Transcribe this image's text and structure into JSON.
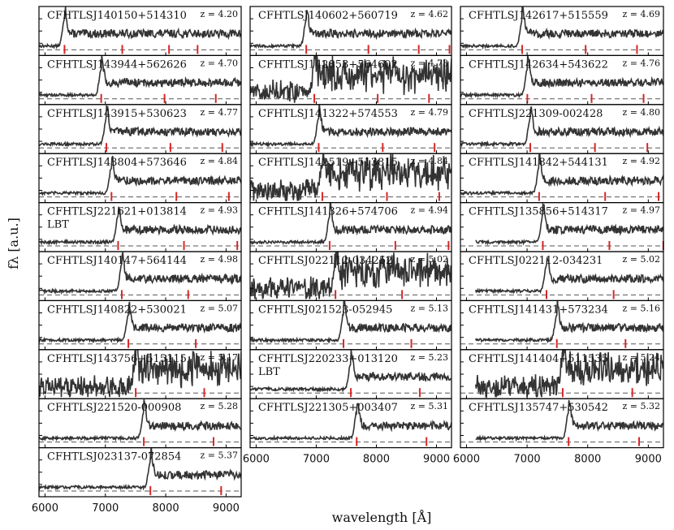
{
  "chart_data": {
    "type": "line",
    "title": "",
    "xlabel": "wavelength [Å]",
    "ylabel": "f_λ [a.u.]",
    "xlim": [
      5900,
      9250
    ],
    "xticks": [
      6000,
      7000,
      8000,
      9000
    ],
    "colors": {
      "spectrum": "#333333",
      "line_marker": "#d62728",
      "zero_line": "#555555"
    },
    "marked_lines_rest_A": [
      1216,
      1400,
      1549,
      1640,
      1909,
      2326
    ],
    "panels": [
      {
        "column": 1,
        "name": "CFHTLSJ140150+514310",
        "z": "z = 4.20",
        "z_value": 4.2,
        "note": ""
      },
      {
        "column": 1,
        "name": "CFHTLSJ143944+562626",
        "z": "z = 4.70",
        "z_value": 4.7,
        "note": ""
      },
      {
        "column": 1,
        "name": "CFHTLSJ143915+530623",
        "z": "z = 4.77",
        "z_value": 4.77,
        "note": ""
      },
      {
        "column": 1,
        "name": "CFHTLSJ143804+573646",
        "z": "z = 4.84",
        "z_value": 4.84,
        "note": ""
      },
      {
        "column": 1,
        "name": "CFHTLSJ221621+013814",
        "z": "z = 4.93",
        "z_value": 4.93,
        "note": "LBT"
      },
      {
        "column": 1,
        "name": "CFHTLSJ140147+564144",
        "z": "z = 4.98",
        "z_value": 4.98,
        "note": ""
      },
      {
        "column": 1,
        "name": "CFHTLSJ140822+530021",
        "z": "z = 5.07",
        "z_value": 5.07,
        "note": ""
      },
      {
        "column": 1,
        "name": "CFHTLSJ143756+515115",
        "z": "z = 5.17",
        "z_value": 5.17,
        "note": ""
      },
      {
        "column": 1,
        "name": "CFHTLSJ221520-000908",
        "z": "z = 5.28",
        "z_value": 5.28,
        "note": ""
      },
      {
        "column": 1,
        "name": "CFHTLSJ023137-072854",
        "z": "z = 5.37",
        "z_value": 5.37,
        "note": ""
      },
      {
        "column": 2,
        "name": "CFHTLSJ140602+560719",
        "z": "z = 4.62",
        "z_value": 4.62,
        "note": ""
      },
      {
        "column": 2,
        "name": "CFHTLSJ142853+564602",
        "z": "z = 4.73",
        "z_value": 4.73,
        "note": ""
      },
      {
        "column": 2,
        "name": "CFHTLSJ141322+574553",
        "z": "z = 4.79",
        "z_value": 4.79,
        "note": ""
      },
      {
        "column": 2,
        "name": "CFHTLSJ142519+513815",
        "z": "z = 4.84",
        "z_value": 4.84,
        "note": ""
      },
      {
        "column": 2,
        "name": "CFHTLSJ141326+574706",
        "z": "z = 4.94",
        "z_value": 4.94,
        "note": ""
      },
      {
        "column": 2,
        "name": "CFHTLSJ022112-034252",
        "z": "z = 5.02",
        "z_value": 5.02,
        "note": ""
      },
      {
        "column": 2,
        "name": "CFHTLSJ021523-052945",
        "z": "z = 5.13",
        "z_value": 5.13,
        "note": ""
      },
      {
        "column": 2,
        "name": "CFHTLSJ220233+013120",
        "z": "z = 5.23",
        "z_value": 5.23,
        "note": "LBT"
      },
      {
        "column": 2,
        "name": "CFHTLSJ221305+003407",
        "z": "z = 5.31",
        "z_value": 5.31,
        "note": ""
      },
      {
        "column": 3,
        "name": "CFHTLSJ142617+515559",
        "z": "z = 4.69",
        "z_value": 4.69,
        "note": ""
      },
      {
        "column": 3,
        "name": "CFHTLSJ142634+543622",
        "z": "z = 4.76",
        "z_value": 4.76,
        "note": ""
      },
      {
        "column": 3,
        "name": "CFHTLSJ221309-002428",
        "z": "z = 4.80",
        "z_value": 4.8,
        "note": ""
      },
      {
        "column": 3,
        "name": "CFHTLSJ141842+544131",
        "z": "z = 4.92",
        "z_value": 4.92,
        "note": ""
      },
      {
        "column": 3,
        "name": "CFHTLSJ135856+514317",
        "z": "z = 4.97",
        "z_value": 4.97,
        "note": ""
      },
      {
        "column": 3,
        "name": "CFHTLSJ022112-034231",
        "z": "z = 5.02",
        "z_value": 5.02,
        "note": ""
      },
      {
        "column": 3,
        "name": "CFHTLSJ141431+573234",
        "z": "z = 5.16",
        "z_value": 5.16,
        "note": ""
      },
      {
        "column": 3,
        "name": "CFHTLSJ141404+511535",
        "z": "z = 5.24",
        "z_value": 5.24,
        "note": ""
      },
      {
        "column": 3,
        "name": "CFHTLSJ135747+530542",
        "z": "z = 5.32",
        "z_value": 5.32,
        "note": ""
      }
    ]
  }
}
